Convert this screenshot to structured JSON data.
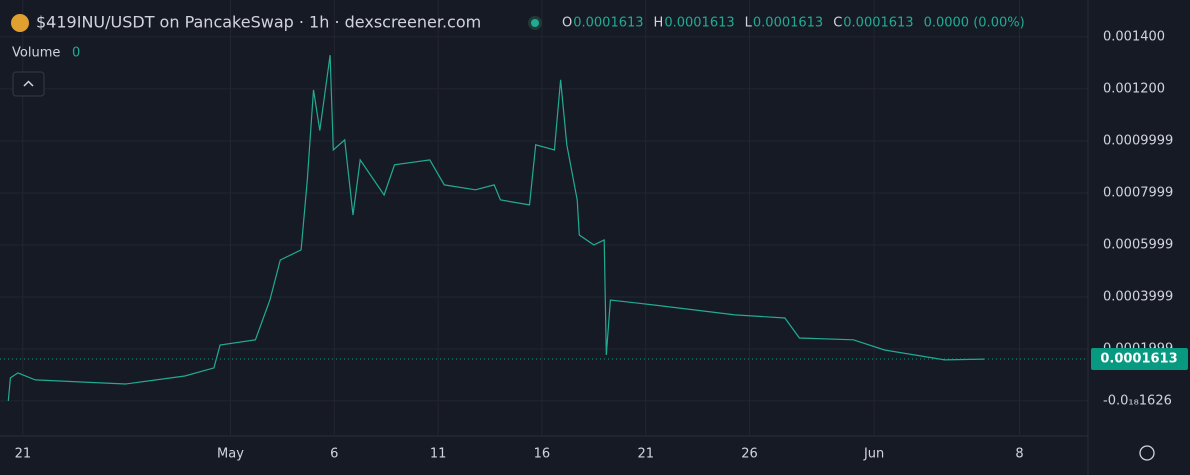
{
  "header": {
    "title": "$419INU/USDT on PancakeSwap · 1h · dexscreener.com",
    "ohlc": [
      {
        "key": "O",
        "value": "0.0001613"
      },
      {
        "key": "H",
        "value": "0.0001613"
      },
      {
        "key": "L",
        "value": "0.0001613"
      },
      {
        "key": "C",
        "value": "0.0001613"
      }
    ],
    "change": "0.0000 (0.00%)"
  },
  "volume": {
    "label": "Volume",
    "value": "0"
  },
  "chart_data": {
    "type": "line",
    "x": [
      -0.7,
      -0.6,
      -0.24,
      0.6,
      4.95,
      7.8,
      9.2,
      9.5,
      11.2,
      11.9,
      12.4,
      13.4,
      13.7,
      14.0,
      14.3,
      14.8,
      14.95,
      15.5,
      15.9,
      16.25,
      17.4,
      17.9,
      19.6,
      20.3,
      21.8,
      22.7,
      23.0,
      24.4,
      24.7,
      25.6,
      25.9,
      26.2,
      26.7,
      26.8,
      27.5,
      28.0,
      28.1,
      28.3,
      30.4,
      34.3,
      36.7,
      37.4,
      40.0,
      41.5,
      44.4,
      46.3
    ],
    "series": [
      {
        "color": "#22ab94",
        "values": [
          0.0,
          8.85e-05,
          0.000108,
          8.1e-05,
          6.5e-05,
          9.6e-05,
          0.000127,
          0.000215,
          0.000235,
          0.000388,
          0.000542,
          0.000581,
          0.00085,
          0.001196,
          0.00104,
          0.00133,
          0.000965,
          0.001004,
          0.000715,
          0.000927,
          0.000792,
          0.000908,
          0.000927,
          0.000831,
          0.000812,
          0.000831,
          0.000773,
          0.000754,
          0.000985,
          0.000965,
          0.001235,
          0.000985,
          0.000773,
          0.000638,
          0.0006,
          0.000619,
          0.000177,
          0.000388,
          0.000369,
          0.000331,
          0.000319,
          0.000242,
          0.000235,
          0.000196,
          0.000158,
          0.000161
        ]
      }
    ],
    "last_price": 0.0001613,
    "last_price_color": "#089981",
    "ylim": [
      -0.000131,
      0.001465
    ],
    "yticks": [
      {
        "value": 0.0014,
        "label": "0.001400"
      },
      {
        "value": 0.0012,
        "label": "0.001200"
      },
      0.0009999,
      0.0007999,
      0.0005999,
      0.0003999,
      0.0001999,
      {
        "value": -1.626e-19,
        "label": "-0.0₁₈1626"
      }
    ],
    "xlim": [
      -1.1,
      51.3
    ],
    "xticks": [
      {
        "value": 0,
        "label": "21"
      },
      {
        "value": 10,
        "label": "May"
      },
      {
        "value": 15,
        "label": "6"
      },
      {
        "value": 20,
        "label": "11"
      },
      {
        "value": 25,
        "label": "16"
      },
      {
        "value": 30,
        "label": "21"
      },
      {
        "value": 35,
        "label": "26"
      },
      {
        "value": 41,
        "label": "Jun"
      },
      {
        "value": 48,
        "label": "8"
      }
    ],
    "grid": true
  }
}
